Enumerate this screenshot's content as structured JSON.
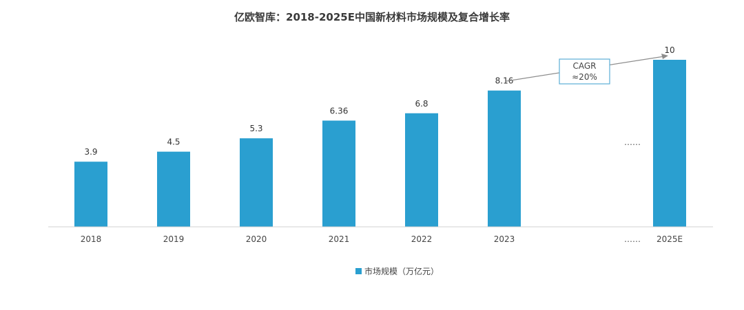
{
  "chart_data": {
    "type": "bar",
    "title": "亿欧智库：2018-2025E中国新材料市场规模及复合增长率",
    "categories": [
      "2018",
      "2019",
      "2020",
      "2021",
      "2022",
      "2023",
      "2025E"
    ],
    "series": [
      {
        "name": "市场规模（万亿元）",
        "values": [
          3.9,
          4.5,
          5.3,
          6.36,
          6.8,
          8.16,
          10
        ]
      }
    ],
    "data_labels": [
      "3.9",
      "4.5",
      "5.3",
      "6.36",
      "6.8",
      "8.16",
      "10"
    ],
    "ylim": [
      0,
      10
    ],
    "grid": false,
    "legend_position": "bottom",
    "gap_marker": "……",
    "annotation": {
      "line1": "CAGR",
      "line2": "≈20%"
    },
    "colors": {
      "bar": "#2a9fd0",
      "axis": "#d0d0d0",
      "annotation_border": "#5aaed6",
      "arrow": "#8c8c8c"
    }
  }
}
